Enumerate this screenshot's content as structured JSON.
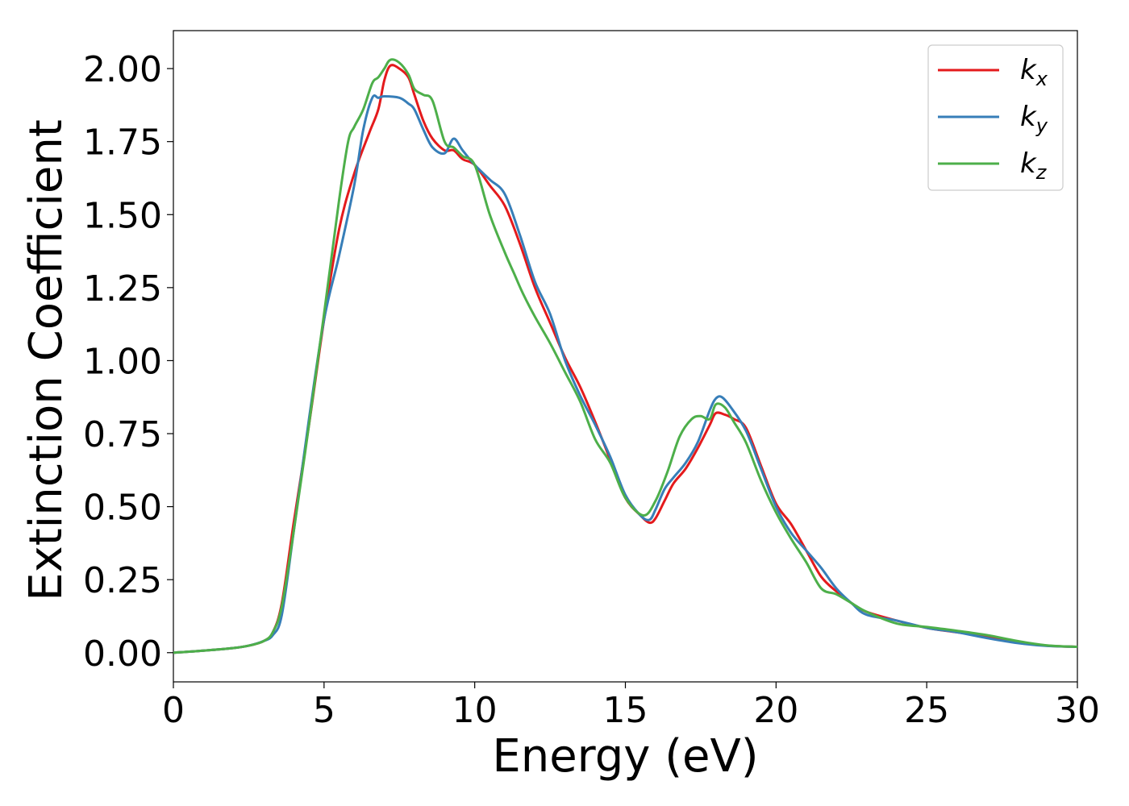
{
  "chart_data": {
    "type": "line",
    "title": "",
    "xlabel": "Energy (eV)",
    "ylabel": "Extinction Coefficient",
    "xlim": [
      0,
      30
    ],
    "ylim": [
      -0.1,
      2.13
    ],
    "xticks": [
      0,
      5,
      10,
      15,
      20,
      25,
      30
    ],
    "xtick_labels": [
      "0",
      "5",
      "10",
      "15",
      "20",
      "25",
      "30"
    ],
    "yticks": [
      0,
      0.25,
      0.5,
      0.75,
      1.0,
      1.25,
      1.5,
      1.75,
      2.0
    ],
    "ytick_labels": [
      "0.00",
      "0.25",
      "0.50",
      "0.75",
      "1.00",
      "1.25",
      "1.50",
      "1.75",
      "2.00"
    ],
    "grid": false,
    "legend_position": "top-right",
    "series": [
      {
        "name": "k",
        "subscript": "x",
        "color": "#e41a1c",
        "x": [
          0,
          1,
          2,
          2.5,
          3,
          3.3,
          3.6,
          4,
          4.5,
          5,
          5.5,
          6,
          6.5,
          6.8,
          7,
          7.2,
          7.5,
          7.8,
          8,
          8.3,
          8.6,
          9,
          9.3,
          9.6,
          10,
          10.5,
          11,
          11.5,
          12,
          12.5,
          13,
          13.5,
          14,
          14.5,
          15,
          15.5,
          15.8,
          16,
          16.3,
          16.6,
          17,
          17.4,
          17.8,
          18,
          18.3,
          18.6,
          19,
          19.5,
          20,
          20.5,
          21,
          21.5,
          22,
          22.5,
          23,
          24,
          25,
          26,
          27,
          28,
          29,
          30
        ],
        "y": [
          0,
          0.007,
          0.016,
          0.024,
          0.04,
          0.07,
          0.17,
          0.45,
          0.78,
          1.14,
          1.45,
          1.64,
          1.78,
          1.86,
          1.96,
          2.01,
          2.0,
          1.97,
          1.91,
          1.82,
          1.76,
          1.72,
          1.72,
          1.69,
          1.67,
          1.6,
          1.53,
          1.4,
          1.25,
          1.13,
          1.01,
          0.91,
          0.79,
          0.66,
          0.53,
          0.47,
          0.445,
          0.46,
          0.52,
          0.58,
          0.63,
          0.7,
          0.78,
          0.82,
          0.815,
          0.8,
          0.77,
          0.64,
          0.51,
          0.44,
          0.35,
          0.26,
          0.21,
          0.17,
          0.14,
          0.11,
          0.085,
          0.07,
          0.055,
          0.035,
          0.024,
          0.02
        ]
      },
      {
        "name": "k",
        "subscript": "y",
        "color": "#377eb8",
        "x": [
          0,
          1,
          2,
          2.5,
          3,
          3.3,
          3.6,
          4,
          4.5,
          5,
          5.5,
          6,
          6.3,
          6.6,
          6.8,
          7,
          7.5,
          7.8,
          8,
          8.3,
          8.6,
          9,
          9.3,
          9.6,
          10,
          10.5,
          11,
          11.5,
          12,
          12.5,
          13,
          13.5,
          14,
          14.5,
          15,
          15.5,
          15.8,
          16,
          16.3,
          16.6,
          17,
          17.4,
          17.8,
          18,
          18.2,
          18.5,
          19,
          19.5,
          20,
          20.5,
          21,
          21.5,
          22,
          22.5,
          23,
          24,
          25,
          26,
          27,
          28,
          29,
          30
        ],
        "y": [
          0,
          0.007,
          0.016,
          0.024,
          0.04,
          0.06,
          0.13,
          0.42,
          0.8,
          1.14,
          1.36,
          1.6,
          1.79,
          1.9,
          1.9,
          1.905,
          1.9,
          1.88,
          1.86,
          1.79,
          1.73,
          1.71,
          1.76,
          1.72,
          1.67,
          1.62,
          1.57,
          1.43,
          1.27,
          1.16,
          1.0,
          0.88,
          0.78,
          0.67,
          0.54,
          0.47,
          0.455,
          0.49,
          0.56,
          0.6,
          0.65,
          0.72,
          0.83,
          0.87,
          0.875,
          0.84,
          0.76,
          0.63,
          0.5,
          0.41,
          0.35,
          0.29,
          0.22,
          0.17,
          0.13,
          0.11,
          0.085,
          0.07,
          0.05,
          0.033,
          0.023,
          0.02
        ]
      },
      {
        "name": "k",
        "subscript": "z",
        "color": "#4daf4a",
        "x": [
          0,
          1,
          2,
          2.5,
          3,
          3.3,
          3.6,
          4,
          4.5,
          5,
          5.5,
          5.8,
          6,
          6.3,
          6.6,
          6.8,
          7,
          7.2,
          7.5,
          7.8,
          8,
          8.3,
          8.6,
          9,
          9.3,
          9.6,
          10,
          10.5,
          11,
          11.3,
          11.6,
          12,
          12.5,
          13,
          13.5,
          14,
          14.5,
          15,
          15.6,
          16,
          16.4,
          16.8,
          17.2,
          17.5,
          17.8,
          18,
          18.3,
          18.6,
          19,
          19.5,
          20,
          20.5,
          21,
          21.5,
          22,
          22.5,
          23,
          24,
          25,
          26,
          27,
          28,
          29,
          30
        ],
        "y": [
          0,
          0.007,
          0.016,
          0.024,
          0.04,
          0.07,
          0.16,
          0.42,
          0.78,
          1.16,
          1.55,
          1.75,
          1.8,
          1.86,
          1.95,
          1.97,
          2.0,
          2.03,
          2.02,
          1.98,
          1.93,
          1.91,
          1.89,
          1.75,
          1.73,
          1.7,
          1.67,
          1.5,
          1.37,
          1.3,
          1.23,
          1.15,
          1.06,
          0.96,
          0.86,
          0.73,
          0.65,
          0.53,
          0.47,
          0.52,
          0.62,
          0.74,
          0.8,
          0.81,
          0.8,
          0.85,
          0.84,
          0.79,
          0.72,
          0.59,
          0.48,
          0.39,
          0.31,
          0.22,
          0.2,
          0.17,
          0.14,
          0.1,
          0.088,
          0.075,
          0.06,
          0.04,
          0.025,
          0.02
        ]
      }
    ]
  }
}
